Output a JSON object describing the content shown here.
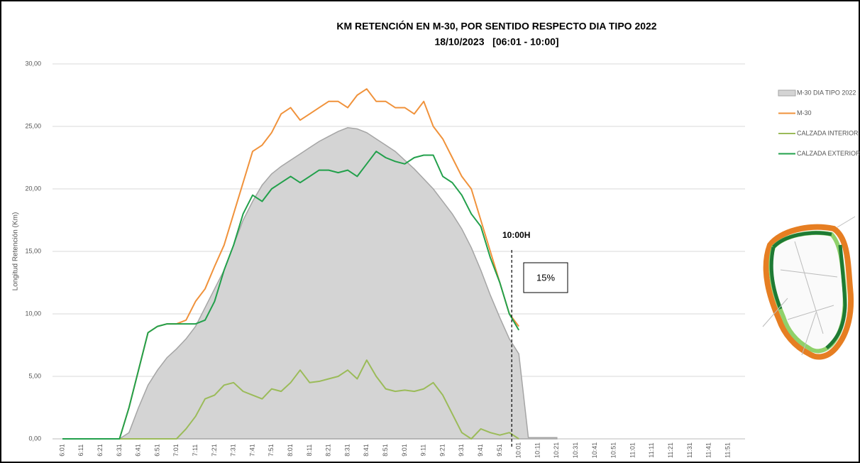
{
  "chart_data": {
    "type": "line",
    "title": "KM RETENCIÓN EN M-30, POR SENTIDO RESPECTO DIA TIPO 2022",
    "subtitle": "18/10/2023   [06:01 - 10:00]",
    "y_label": "Longitud Retención (Km)",
    "annotations": [
      "10:00H",
      "15%"
    ],
    "categories": [
      "6:01",
      null,
      "6:11",
      null,
      "6:21",
      null,
      "6:31",
      null,
      "6:41",
      null,
      "6:51",
      null,
      "7:01",
      null,
      "7:11",
      null,
      "7:21",
      null,
      "7:31",
      null,
      "7:41",
      null,
      "7:51",
      null,
      "8:01",
      null,
      "8:11",
      null,
      "8:21",
      null,
      "8:31",
      null,
      "8:41",
      null,
      "8:51",
      null,
      "9:01",
      null,
      "9:11",
      null,
      "9:21",
      null,
      "9:31",
      null,
      "9:41",
      null,
      "9:51",
      null,
      "10:01",
      null,
      "10:11",
      null,
      "10:21",
      null,
      "10:31",
      null,
      "10:41",
      null,
      "10:51",
      null,
      "11:01",
      null,
      "11:11",
      null,
      "11:21",
      null,
      "11:31",
      null,
      "11:41",
      null,
      "11:51",
      null
    ],
    "series": [
      {
        "name": "M-30 DIA TIPO 2022",
        "style": "area",
        "color": "#d4d4d4",
        "values": [
          0,
          0,
          0,
          0,
          0,
          0,
          0,
          0.5,
          2.5,
          4.3,
          5.5,
          6.5,
          7.2,
          8,
          9,
          10.5,
          12,
          13.5,
          15.5,
          17.5,
          19,
          20.3,
          21.2,
          21.8,
          22.3,
          22.8,
          23.3,
          23.8,
          24.2,
          24.6,
          24.9,
          24.8,
          24.5,
          24,
          23.5,
          23,
          22.3,
          21.6,
          20.8,
          20,
          19,
          18,
          16.8,
          15.3,
          13.5,
          11.5,
          9.7,
          8,
          6.8,
          0.1,
          0.1,
          0.1,
          0.1,
          null,
          null,
          null,
          null,
          null,
          null,
          null,
          null,
          null,
          null,
          null,
          null,
          null,
          null,
          null,
          null,
          null,
          null,
          null
        ]
      },
      {
        "name": "M-30",
        "style": "line",
        "color": "#f0923b",
        "values": [
          0,
          0,
          0,
          0,
          0,
          0,
          0,
          2.5,
          5.5,
          8.5,
          9,
          9.2,
          9.2,
          9.5,
          11,
          12,
          13.8,
          15.5,
          18,
          20.5,
          23,
          23.5,
          24.5,
          26,
          26.5,
          25.5,
          26,
          26.5,
          27,
          27,
          26.5,
          27.5,
          28,
          27,
          27,
          26.5,
          26.5,
          26,
          27,
          25,
          24,
          22.5,
          21,
          20,
          17.5,
          15,
          12.5,
          10,
          9,
          null,
          null,
          null,
          null,
          null,
          null,
          null,
          null,
          null,
          null,
          null,
          null,
          null,
          null,
          null,
          null,
          null,
          null,
          null,
          null,
          null,
          null,
          null
        ]
      },
      {
        "name": "CALZADA INTERIOR",
        "style": "line",
        "color": "#9bbb59",
        "values": [
          0,
          0,
          0,
          0,
          0,
          0,
          0,
          0,
          0,
          0,
          0,
          0,
          0,
          0.8,
          1.8,
          3.2,
          3.5,
          4.3,
          4.5,
          3.8,
          3.5,
          3.2,
          4,
          3.8,
          4.5,
          5.5,
          4.5,
          4.6,
          4.8,
          5,
          5.5,
          4.8,
          6.3,
          5,
          4,
          3.8,
          3.9,
          3.8,
          4,
          4.5,
          3.5,
          2,
          0.5,
          0,
          0.8,
          0.5,
          0.3,
          0.5,
          0,
          null,
          null,
          null,
          null,
          null,
          null,
          null,
          null,
          null,
          null,
          null,
          null,
          null,
          null,
          null,
          null,
          null,
          null,
          null,
          null,
          null,
          null,
          null
        ]
      },
      {
        "name": "CALZADA EXTERIOR",
        "style": "line",
        "color": "#22a04b",
        "values": [
          0,
          0,
          0,
          0,
          0,
          0,
          0,
          2.5,
          5.5,
          8.5,
          9,
          9.2,
          9.2,
          9.2,
          9.2,
          9.5,
          11,
          13.5,
          15.5,
          18,
          19.5,
          19,
          20,
          20.5,
          21,
          20.5,
          21,
          21.5,
          21.5,
          21.3,
          21.5,
          21,
          22,
          23,
          22.5,
          22.2,
          22,
          22.5,
          22.7,
          22.7,
          21,
          20.5,
          19.5,
          18,
          17,
          14.5,
          12.5,
          10,
          8.7,
          null,
          null,
          null,
          null,
          null,
          null,
          null,
          null,
          null,
          null,
          null,
          null,
          null,
          null,
          null,
          null,
          null,
          null,
          null,
          null,
          null,
          null,
          null
        ]
      }
    ],
    "ylim": [
      0,
      30
    ],
    "yticks": [
      {
        "value": 0,
        "label": "0,00"
      },
      {
        "value": 5,
        "label": "5,00"
      },
      {
        "value": 10,
        "label": "10,00"
      },
      {
        "value": 15,
        "label": "15,00"
      },
      {
        "value": 20,
        "label": "20,00"
      },
      {
        "value": 25,
        "label": "25,00"
      },
      {
        "value": 30,
        "label": "30,00"
      }
    ],
    "grid": true
  }
}
